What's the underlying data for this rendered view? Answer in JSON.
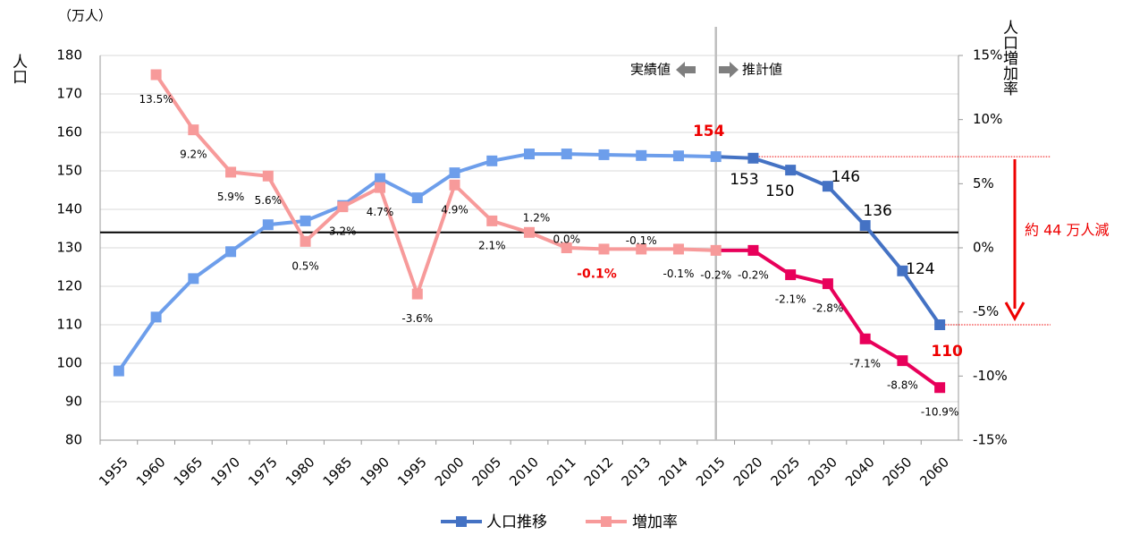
{
  "chart_data": {
    "type": "line",
    "unit_label": "（万人）",
    "ylabel": "人口",
    "y2label": "人口増加率",
    "categories": [
      "1955",
      "1960",
      "1965",
      "1970",
      "1975",
      "1980",
      "1985",
      "1990",
      "1995",
      "2000",
      "2005",
      "2010",
      "2011",
      "2012",
      "2013",
      "2014",
      "2015",
      "2020",
      "2025",
      "2030",
      "2040",
      "2050",
      "2060"
    ],
    "split_category": "2015",
    "series": [
      {
        "name": "人口推移",
        "color": "#4472c4",
        "past_color": "#6d9eeb",
        "axis": "y",
        "values": [
          98,
          112,
          122,
          129,
          136,
          137,
          141,
          148,
          143,
          149.5,
          152.6,
          154.4,
          154.4,
          154.2,
          154,
          153.9,
          153.7,
          153.3,
          150.2,
          146,
          135.8,
          124,
          110
        ],
        "value_labels": [
          null,
          null,
          null,
          null,
          null,
          null,
          null,
          null,
          null,
          null,
          null,
          null,
          null,
          null,
          null,
          null,
          "154",
          "153",
          "150",
          "146",
          "136",
          "124",
          "110"
        ]
      },
      {
        "name": "増加率",
        "color": "#e8005a",
        "past_color": "#f79a9a",
        "axis": "y2",
        "values": [
          null,
          13.5,
          9.2,
          5.9,
          5.6,
          0.5,
          3.2,
          4.7,
          -3.6,
          4.9,
          2.1,
          1.2,
          0.0,
          -0.1,
          -0.1,
          -0.1,
          -0.2,
          -0.2,
          -2.1,
          -2.8,
          -7.1,
          -8.8,
          -10.9
        ],
        "value_labels": [
          null,
          "13.5%",
          "9.2%",
          "5.9%",
          "5.6%",
          "0.5%",
          "3.2%",
          "4.7%",
          "-3.6%",
          "4.9%",
          "2.1%",
          "1.2%",
          "0.0%",
          "-0.1%",
          "-0.1%",
          "-0.1%",
          "-0.2%",
          "-0.2%",
          "-2.1%",
          "-2.8%",
          "-7.1%",
          "-8.8%",
          "-10.9%"
        ]
      }
    ],
    "ylim": [
      80,
      180
    ],
    "yticks": [
      80,
      90,
      100,
      110,
      120,
      130,
      140,
      150,
      160,
      170,
      180
    ],
    "y2lim": [
      -15,
      15
    ],
    "y2ticks": [
      {
        "value": -15,
        "label": "-15%"
      },
      {
        "value": -10,
        "label": "-10%"
      },
      {
        "value": -5,
        "label": "-5%"
      },
      {
        "value": 0,
        "label": "0%"
      },
      {
        "value": 5,
        "label": "5%"
      },
      {
        "value": 10,
        "label": "10%"
      },
      {
        "value": 15,
        "label": "15%"
      }
    ],
    "reference_line": 134,
    "grid": true,
    "annotations": {
      "actual": "実績値",
      "estimate": "推計値",
      "decrease": "約 44 万人減"
    }
  }
}
